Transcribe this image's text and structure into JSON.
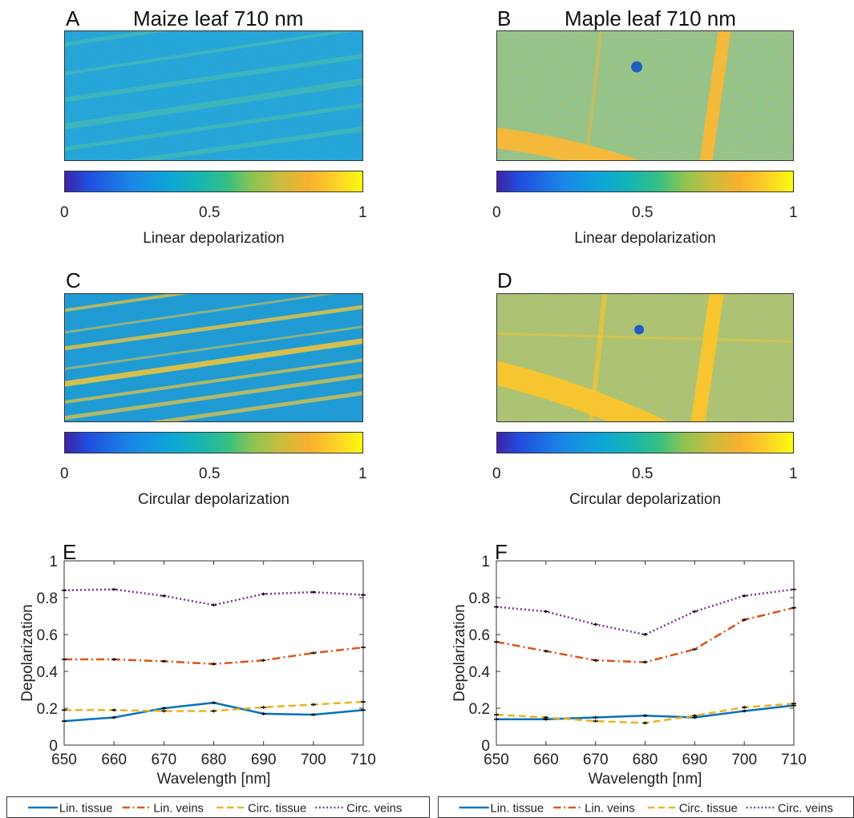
{
  "panels": {
    "A": {
      "letter": "A",
      "title": "Maize leaf 710 nm",
      "colorbar_label": "Linear depolarization"
    },
    "B": {
      "letter": "B",
      "title": "Maple leaf 710 nm",
      "colorbar_label": "Linear depolarization"
    },
    "C": {
      "letter": "C",
      "colorbar_label": "Circular depolarization"
    },
    "D": {
      "letter": "D",
      "colorbar_label": "Circular depolarization"
    },
    "E": {
      "letter": "E"
    },
    "F": {
      "letter": "F"
    }
  },
  "colorbar_ticks": [
    "0",
    "0.5",
    "1"
  ],
  "colors": {
    "lin_tissue": "#0072bd",
    "lin_veins": "#d95319",
    "circ_tissue": "#edb120",
    "circ_veins": "#7e2f8e"
  },
  "chart_data": [
    {
      "type": "line",
      "panel": "E",
      "xlabel": "Wavelength [nm]",
      "ylabel": "Depolarization",
      "xlim": [
        650,
        710
      ],
      "ylim": [
        0,
        1
      ],
      "xticks": [
        "650",
        "660",
        "670",
        "680",
        "690",
        "700",
        "710"
      ],
      "yticks": [
        "0",
        "0.2",
        "0.4",
        "0.6",
        "0.8",
        "1"
      ],
      "x": [
        650,
        660,
        670,
        680,
        690,
        700,
        710
      ],
      "series": [
        {
          "name": "Lin. tissue",
          "style": "solid",
          "values": [
            0.13,
            0.15,
            0.2,
            0.23,
            0.17,
            0.165,
            0.19
          ]
        },
        {
          "name": "Lin. veins",
          "style": "dashdot",
          "values": [
            0.465,
            0.465,
            0.455,
            0.44,
            0.46,
            0.5,
            0.53
          ]
        },
        {
          "name": "Circ. tissue",
          "style": "dashed",
          "values": [
            0.19,
            0.19,
            0.185,
            0.185,
            0.205,
            0.22,
            0.235
          ]
        },
        {
          "name": "Circ. veins",
          "style": "dotted",
          "values": [
            0.84,
            0.845,
            0.81,
            0.76,
            0.82,
            0.83,
            0.815
          ]
        }
      ],
      "legend": "bottom"
    },
    {
      "type": "line",
      "panel": "F",
      "xlabel": "Wavelength [nm]",
      "ylabel": "Depolarization",
      "xlim": [
        650,
        710
      ],
      "ylim": [
        0,
        1
      ],
      "xticks": [
        "650",
        "660",
        "670",
        "680",
        "690",
        "700",
        "710"
      ],
      "yticks": [
        "0",
        "0.2",
        "0.4",
        "0.6",
        "0.8",
        "1"
      ],
      "x": [
        650,
        660,
        670,
        680,
        690,
        700,
        710
      ],
      "series": [
        {
          "name": "Lin. tissue",
          "style": "solid",
          "values": [
            0.14,
            0.14,
            0.15,
            0.16,
            0.15,
            0.185,
            0.215
          ]
        },
        {
          "name": "Lin. veins",
          "style": "dashdot",
          "values": [
            0.56,
            0.51,
            0.46,
            0.45,
            0.52,
            0.68,
            0.745
          ]
        },
        {
          "name": "Circ. tissue",
          "style": "dashed",
          "values": [
            0.165,
            0.15,
            0.13,
            0.12,
            0.16,
            0.205,
            0.225
          ]
        },
        {
          "name": "Circ. veins",
          "style": "dotted",
          "values": [
            0.75,
            0.725,
            0.655,
            0.6,
            0.725,
            0.81,
            0.845
          ]
        }
      ],
      "legend": "bottom"
    }
  ]
}
